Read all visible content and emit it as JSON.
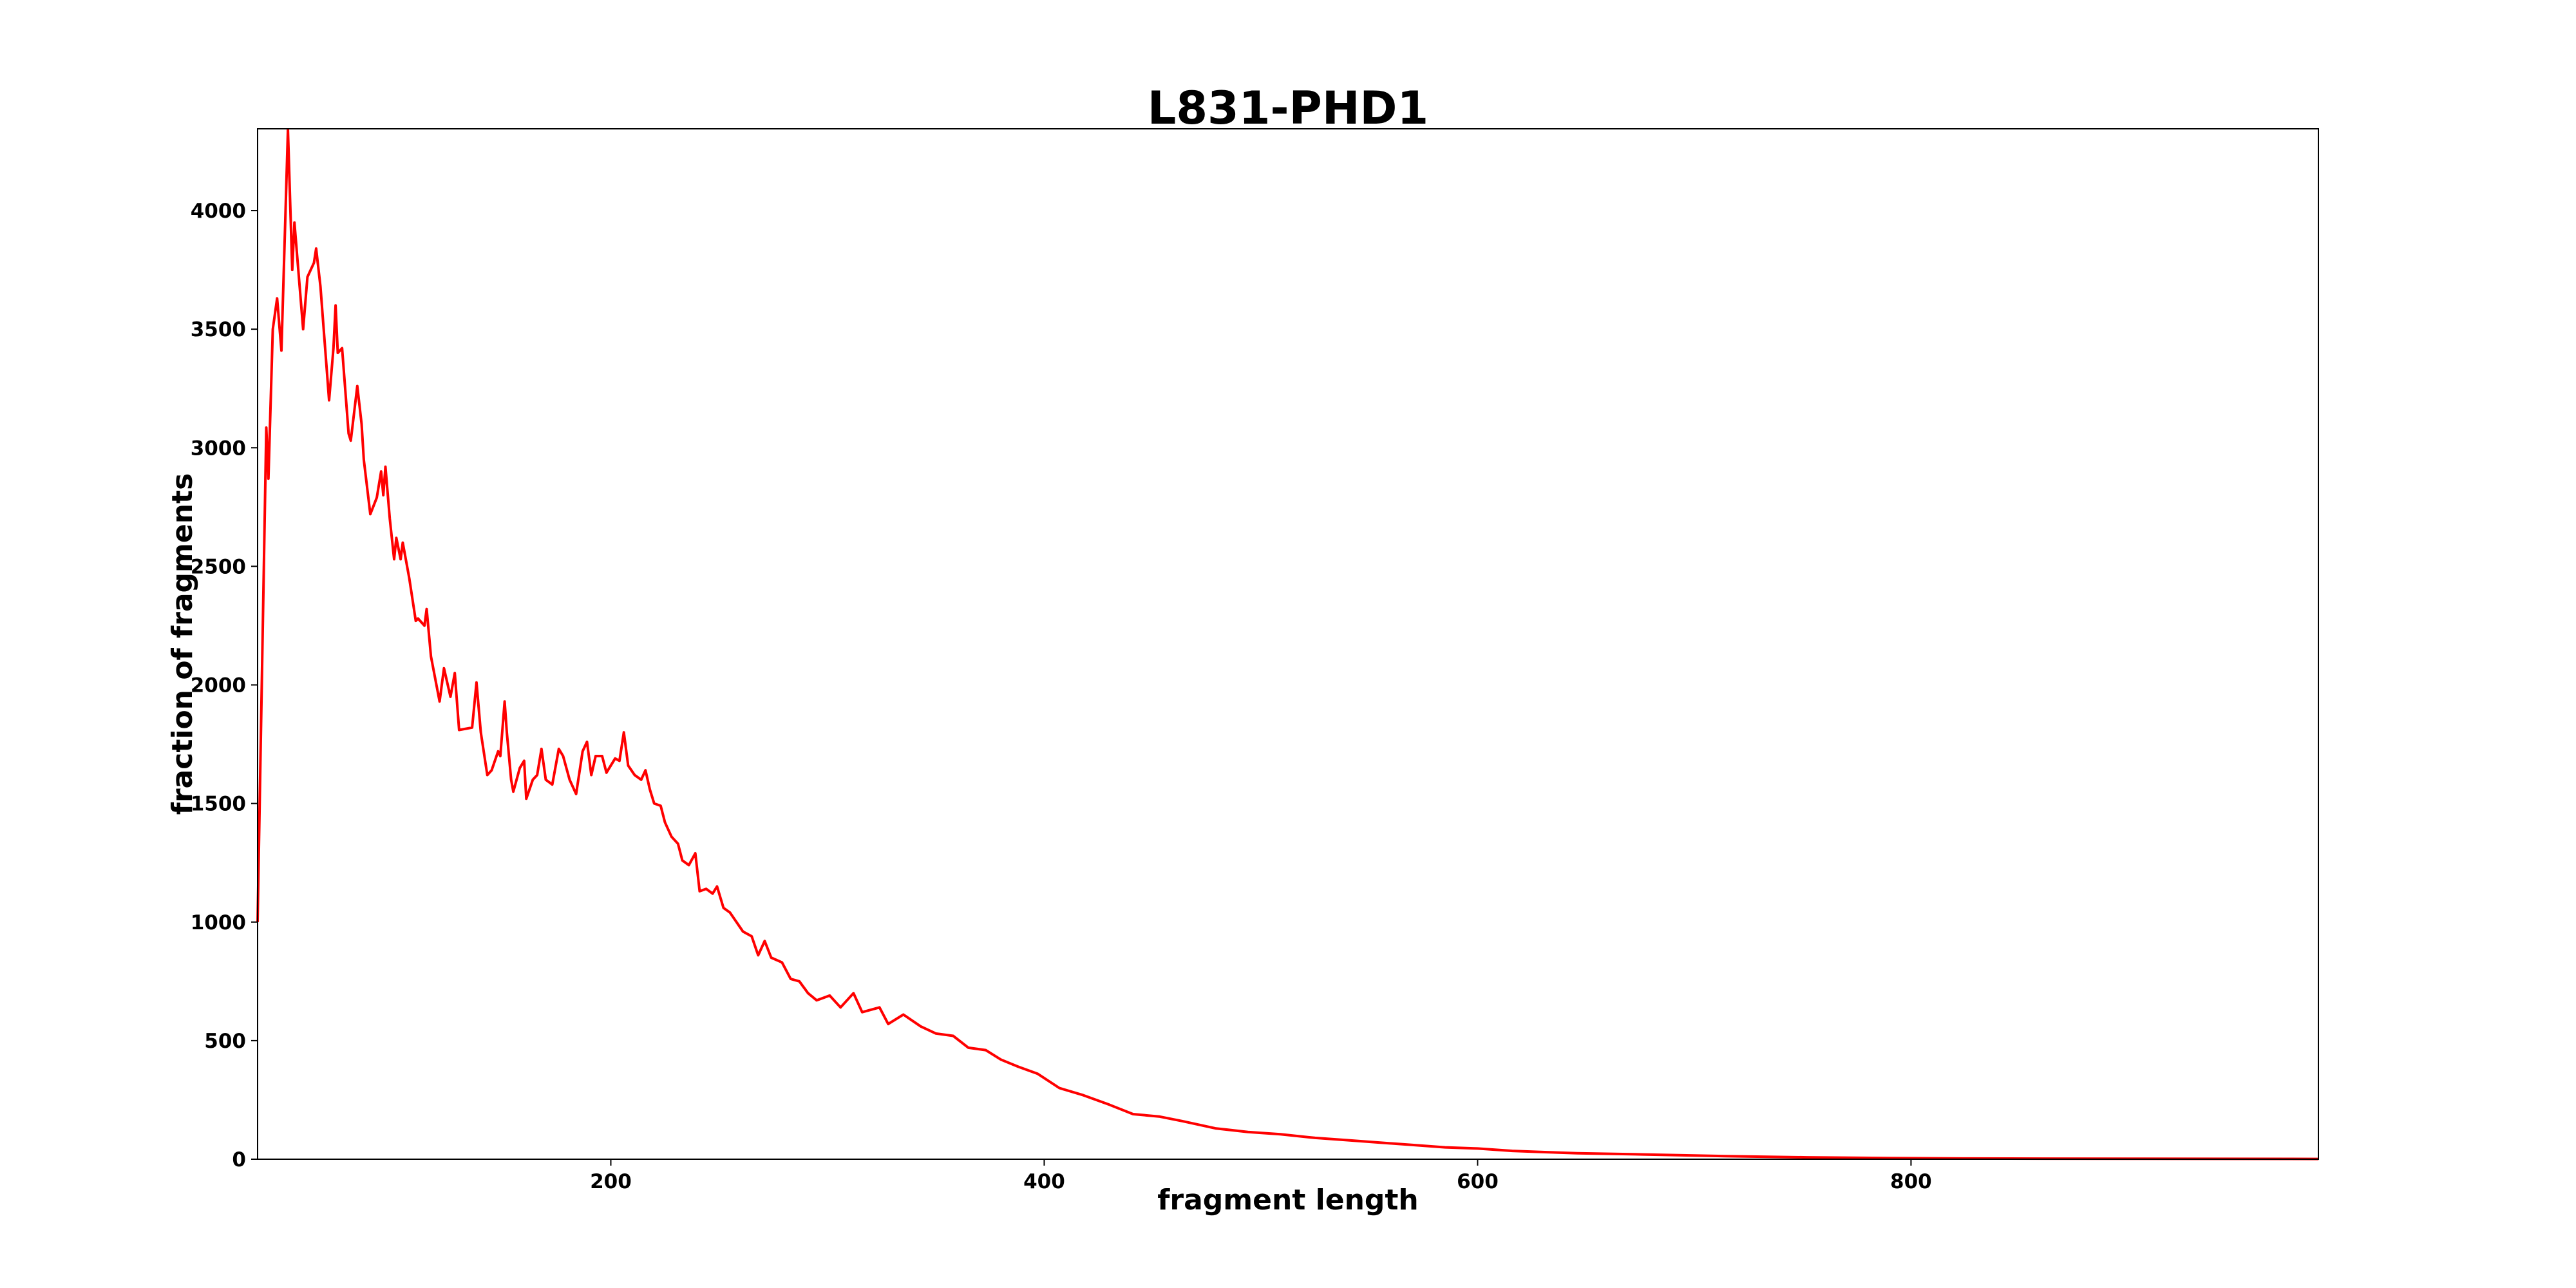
{
  "chart_data": {
    "type": "line",
    "title": "L831-PHD1",
    "xlabel": "fragment length",
    "ylabel": "fraction of fragments",
    "xlim": [
      37,
      988
    ],
    "ylim": [
      0,
      4345
    ],
    "xticks": [
      200,
      400,
      600,
      800
    ],
    "xtick_labels": [
      "200",
      "400",
      "600",
      "800"
    ],
    "yticks": [
      0,
      500,
      1000,
      1500,
      2000,
      2500,
      3000,
      3500,
      4000
    ],
    "ytick_labels": [
      "0",
      "500",
      "1000",
      "1500",
      "2000",
      "2500",
      "3000",
      "3500",
      "4000"
    ],
    "grid": false,
    "series": [
      {
        "name": "L831-PHD1",
        "color": "#ff0000",
        "x": [
          37,
          41,
          42,
          44,
          46,
          48,
          51,
          53,
          54,
          58,
          60,
          63,
          64,
          66,
          70,
          72,
          73,
          74,
          76,
          79,
          80,
          83,
          85,
          86,
          89,
          92,
          94,
          95,
          96,
          98,
          100,
          101,
          103,
          104,
          107,
          110,
          111,
          114,
          115,
          117,
          121,
          123,
          126,
          128,
          130,
          136,
          138,
          140,
          143,
          145,
          148,
          149,
          151,
          152,
          154,
          155,
          158,
          160,
          161,
          164,
          166,
          168,
          170,
          173,
          176,
          178,
          181,
          184,
          187,
          189,
          191,
          193,
          196,
          198,
          202,
          204,
          206,
          208,
          211,
          214,
          216,
          218,
          220,
          223,
          225,
          228,
          231,
          233,
          236,
          239,
          241,
          244,
          247,
          249,
          252,
          255,
          258,
          261,
          265,
          268,
          271,
          274,
          279,
          283,
          287,
          291,
          295,
          301,
          306,
          312,
          316,
          324,
          328,
          335,
          343,
          350,
          358,
          365,
          373,
          380,
          388,
          397,
          407,
          418,
          430,
          441,
          453,
          464,
          479,
          494,
          509,
          525,
          540,
          555,
          570,
          585,
          600,
          616,
          631,
          646,
          676,
          714,
          752,
          790,
          828,
          904,
          988
        ],
        "y": [
          1000,
          3085,
          2870,
          3500,
          3630,
          3410,
          4340,
          3750,
          3950,
          3500,
          3720,
          3780,
          3840,
          3680,
          3200,
          3420,
          3600,
          3400,
          3420,
          3060,
          3030,
          3260,
          3100,
          2950,
          2720,
          2790,
          2900,
          2800,
          2920,
          2700,
          2530,
          2620,
          2530,
          2600,
          2450,
          2270,
          2280,
          2250,
          2320,
          2120,
          1930,
          2070,
          1950,
          2050,
          1810,
          1820,
          2010,
          1800,
          1620,
          1640,
          1720,
          1700,
          1930,
          1800,
          1600,
          1550,
          1650,
          1680,
          1520,
          1600,
          1620,
          1730,
          1600,
          1580,
          1730,
          1700,
          1600,
          1540,
          1720,
          1760,
          1620,
          1700,
          1700,
          1630,
          1690,
          1680,
          1800,
          1660,
          1620,
          1600,
          1640,
          1560,
          1500,
          1490,
          1420,
          1360,
          1330,
          1260,
          1240,
          1290,
          1130,
          1140,
          1120,
          1150,
          1060,
          1040,
          1000,
          960,
          940,
          860,
          920,
          850,
          830,
          760,
          750,
          700,
          670,
          690,
          640,
          700,
          620,
          640,
          570,
          610,
          560,
          530,
          520,
          470,
          460,
          420,
          390,
          360,
          300,
          270,
          230,
          190,
          180,
          160,
          130,
          115,
          105,
          90,
          80,
          70,
          60,
          50,
          45,
          35,
          30,
          25,
          20,
          13,
          8,
          5,
          3,
          2,
          1
        ]
      }
    ]
  }
}
